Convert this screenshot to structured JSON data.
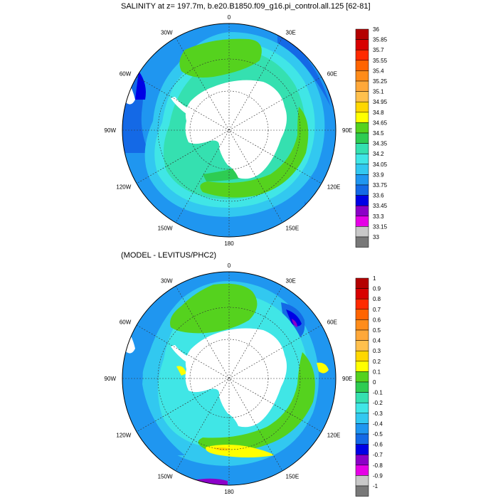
{
  "chart_data": [
    {
      "type": "heatmap",
      "title": "SALINITY at z= 197.7m, b.e20.B1850.f09_g16.pi_control.all.125 [62-81]",
      "lon_labels": [
        "0",
        "30E",
        "60E",
        "90E",
        "120E",
        "150E",
        "180",
        "150W",
        "120W",
        "90W",
        "60W",
        "30W"
      ],
      "colorbar": {
        "labels": [
          "36",
          "35.85",
          "35.7",
          "35.55",
          "35.4",
          "35.25",
          "35.1",
          "34.95",
          "34.8",
          "34.65",
          "34.5",
          "34.35",
          "34.2",
          "34.05",
          "33.9",
          "33.75",
          "33.6",
          "33.45",
          "33.3",
          "33.15",
          "33"
        ],
        "colors": [
          "#b40000",
          "#d80000",
          "#ff2a00",
          "#ff6400",
          "#ff8c1a",
          "#ffa83a",
          "#ffc04d",
          "#ffd700",
          "#ffff00",
          "#55d21e",
          "#2ecc52",
          "#35e0b0",
          "#40e6e6",
          "#32c8f0",
          "#1f96f0",
          "#1469e6",
          "#0000e6",
          "#8c00c8",
          "#e600e6",
          "#c8c8c8",
          "#787878"
        ]
      }
    },
    {
      "type": "heatmap",
      "title": "(MODEL - LEVITUS/PHC2)",
      "lon_labels": [
        "0",
        "30E",
        "60E",
        "90E",
        "120E",
        "150E",
        "180",
        "150W",
        "120W",
        "90W",
        "60W",
        "30W"
      ],
      "colorbar": {
        "labels": [
          "1",
          "0.9",
          "0.8",
          "0.7",
          "0.6",
          "0.5",
          "0.4",
          "0.3",
          "0.2",
          "0.1",
          "0",
          "-0.1",
          "-0.2",
          "-0.3",
          "-0.4",
          "-0.5",
          "-0.6",
          "-0.7",
          "-0.8",
          "-0.9",
          "-1"
        ],
        "colors": [
          "#b40000",
          "#d80000",
          "#ff2a00",
          "#ff6400",
          "#ff8c1a",
          "#ffa83a",
          "#ffc04d",
          "#ffd700",
          "#ffff00",
          "#55d21e",
          "#2ecc52",
          "#35e0b0",
          "#40e6e6",
          "#32c8f0",
          "#1f96f0",
          "#1469e6",
          "#0000e6",
          "#8c00c8",
          "#e600e6",
          "#c8c8c8",
          "#787878"
        ]
      }
    }
  ]
}
